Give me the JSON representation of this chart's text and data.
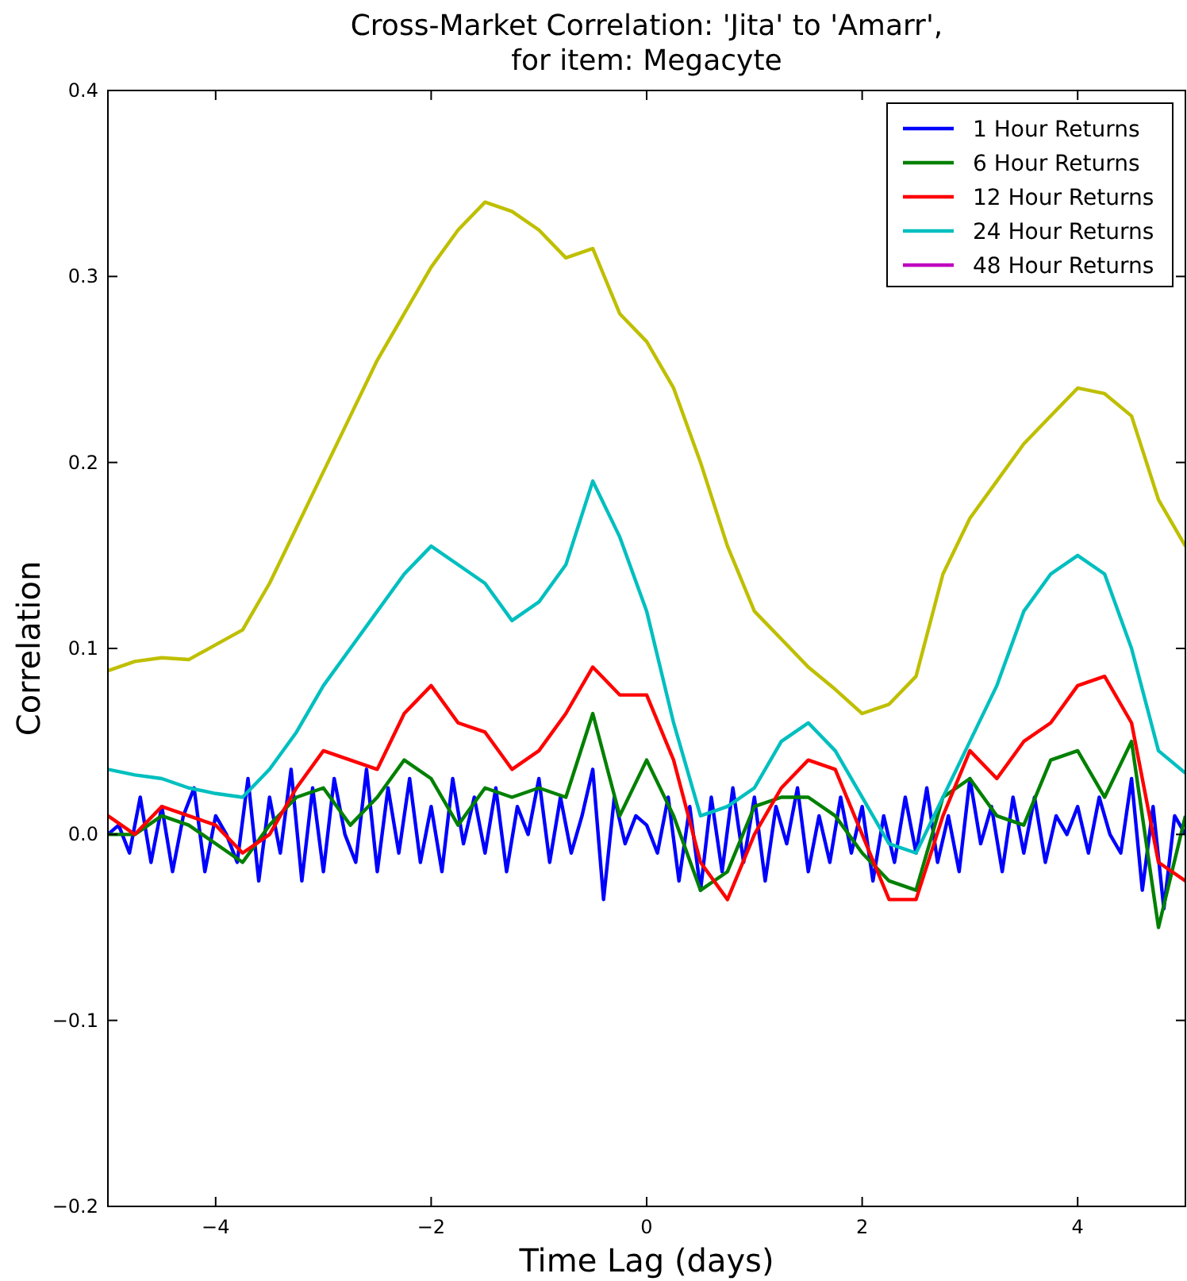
{
  "chart_data": {
    "type": "line",
    "title": "Cross-Market Correlation: 'Jita' to 'Amarr',\nfor item: Megacyte",
    "xlabel": "Time Lag (days)",
    "ylabel": "Correlation",
    "xlim": [
      -5,
      5
    ],
    "ylim": [
      -0.2,
      0.4
    ],
    "xticks": [
      {
        "value": -4,
        "label": "−4"
      },
      {
        "value": -2,
        "label": "−2"
      },
      {
        "value": 0,
        "label": "0"
      },
      {
        "value": 2,
        "label": "2"
      },
      {
        "value": 4,
        "label": "4"
      }
    ],
    "yticks": [
      {
        "value": -0.2,
        "label": "−0.2"
      },
      {
        "value": -0.1,
        "label": "−0.1"
      },
      {
        "value": 0,
        "label": "0.0"
      },
      {
        "value": 0.1,
        "label": "0.1"
      },
      {
        "value": 0.2,
        "label": "0.2"
      },
      {
        "value": 0.3,
        "label": "0.3"
      },
      {
        "value": 0.4,
        "label": "0.4"
      }
    ],
    "grid": false,
    "legend": "top right",
    "line_style": "solid",
    "marker": "none",
    "x": [
      -5,
      -4.75,
      -4.5,
      -4.25,
      -4,
      -3.75,
      -3.5,
      -3.25,
      -3,
      -2.75,
      -2.5,
      -2.25,
      -2,
      -1.75,
      -1.5,
      -1.25,
      -1,
      -0.75,
      -0.5,
      -0.25,
      0,
      0.25,
      0.5,
      0.75,
      1,
      1.25,
      1.5,
      1.75,
      2,
      2.25,
      2.5,
      2.75,
      3,
      3.25,
      3.5,
      3.75,
      4,
      4.25,
      4.5,
      4.75,
      5
    ],
    "series": [
      {
        "name": "1 Hour Returns",
        "color": "#0000ff",
        "x": [
          -5,
          -4.9,
          -4.8,
          -4.7,
          -4.6,
          -4.5,
          -4.4,
          -4.3,
          -4.2,
          -4.1,
          -4,
          -3.9,
          -3.8,
          -3.7,
          -3.6,
          -3.5,
          -3.4,
          -3.3,
          -3.2,
          -3.1,
          -3,
          -2.9,
          -2.8,
          -2.7,
          -2.6,
          -2.5,
          -2.4,
          -2.3,
          -2.2,
          -2.1,
          -2,
          -1.9,
          -1.8,
          -1.7,
          -1.6,
          -1.5,
          -1.4,
          -1.3,
          -1.2,
          -1.1,
          -1,
          -0.9,
          -0.8,
          -0.7,
          -0.6,
          -0.5,
          -0.4,
          -0.3,
          -0.2,
          -0.1,
          0,
          0.1,
          0.2,
          0.3,
          0.4,
          0.5,
          0.6,
          0.7,
          0.8,
          0.9,
          1,
          1.1,
          1.2,
          1.3,
          1.4,
          1.5,
          1.6,
          1.7,
          1.8,
          1.9,
          2,
          2.1,
          2.2,
          2.3,
          2.4,
          2.5,
          2.6,
          2.7,
          2.8,
          2.9,
          3,
          3.1,
          3.2,
          3.3,
          3.4,
          3.5,
          3.6,
          3.7,
          3.8,
          3.9,
          4,
          4.1,
          4.2,
          4.3,
          4.4,
          4.5,
          4.6,
          4.7,
          4.8,
          4.9,
          5
        ],
        "values": [
          0.0,
          0.005,
          -0.01,
          0.02,
          -0.015,
          0.015,
          -0.02,
          0.01,
          0.025,
          -0.02,
          0.01,
          0.0,
          -0.015,
          0.03,
          -0.025,
          0.02,
          -0.01,
          0.035,
          -0.025,
          0.025,
          -0.02,
          0.03,
          0.0,
          -0.015,
          0.035,
          -0.02,
          0.025,
          -0.01,
          0.03,
          -0.015,
          0.015,
          -0.02,
          0.03,
          -0.005,
          0.02,
          -0.01,
          0.025,
          -0.02,
          0.015,
          0.0,
          0.03,
          -0.015,
          0.02,
          -0.01,
          0.01,
          0.035,
          -0.035,
          0.02,
          -0.005,
          0.01,
          0.005,
          -0.01,
          0.02,
          -0.025,
          0.015,
          -0.03,
          0.02,
          -0.02,
          0.025,
          -0.015,
          0.02,
          -0.025,
          0.015,
          -0.005,
          0.025,
          -0.02,
          0.01,
          -0.015,
          0.02,
          -0.01,
          0.015,
          -0.025,
          0.01,
          -0.015,
          0.02,
          -0.01,
          0.025,
          -0.015,
          0.01,
          -0.02,
          0.03,
          -0.005,
          0.015,
          -0.02,
          0.02,
          -0.01,
          0.02,
          -0.015,
          0.01,
          0.0,
          0.015,
          -0.01,
          0.02,
          0.0,
          -0.01,
          0.03,
          -0.03,
          0.015,
          -0.04,
          0.01,
          0.0
        ]
      },
      {
        "name": "6 Hour Returns",
        "color": "#008000",
        "values": [
          0.0,
          0.0,
          0.01,
          0.005,
          -0.005,
          -0.015,
          0.005,
          0.02,
          0.025,
          0.005,
          0.02,
          0.04,
          0.03,
          0.005,
          0.025,
          0.02,
          0.025,
          0.02,
          0.065,
          0.01,
          0.04,
          0.01,
          -0.03,
          -0.02,
          0.015,
          0.02,
          0.02,
          0.01,
          -0.01,
          -0.025,
          -0.03,
          0.02,
          0.03,
          0.01,
          0.005,
          0.04,
          0.045,
          0.02,
          0.05,
          -0.05,
          0.01
        ]
      },
      {
        "name": "12 Hour Returns",
        "color": "#ff0000",
        "values": [
          0.01,
          0.0,
          0.015,
          0.01,
          0.005,
          -0.01,
          0.0,
          0.025,
          0.045,
          0.04,
          0.035,
          0.065,
          0.08,
          0.06,
          0.055,
          0.035,
          0.045,
          0.065,
          0.09,
          0.075,
          0.075,
          0.04,
          -0.015,
          -0.035,
          0.0,
          0.025,
          0.04,
          0.035,
          0.0,
          -0.035,
          -0.035,
          0.01,
          0.045,
          0.03,
          0.05,
          0.06,
          0.08,
          0.085,
          0.06,
          -0.015,
          -0.025
        ]
      },
      {
        "name": "24 Hour Returns",
        "color": "#00bfbf",
        "values": [
          0.035,
          0.032,
          0.03,
          0.025,
          0.022,
          0.02,
          0.035,
          0.055,
          0.08,
          0.1,
          0.12,
          0.14,
          0.155,
          0.145,
          0.135,
          0.115,
          0.125,
          0.145,
          0.19,
          0.16,
          0.12,
          0.06,
          0.01,
          0.015,
          0.025,
          0.05,
          0.06,
          0.045,
          0.02,
          -0.005,
          -0.01,
          0.02,
          0.05,
          0.08,
          0.12,
          0.14,
          0.15,
          0.14,
          0.1,
          0.045,
          0.033
        ]
      },
      {
        "name": "48 Hour Returns",
        "color": "#bf00bf",
        "values": [
          null,
          null,
          null,
          null,
          null,
          null,
          null,
          null,
          null,
          null,
          null,
          null,
          null,
          null,
          null,
          null,
          null,
          null,
          null,
          null,
          null,
          null,
          null,
          null,
          null,
          null,
          null,
          null,
          null,
          null,
          null,
          null,
          null,
          null,
          null,
          null,
          null,
          null,
          null,
          null,
          null
        ]
      },
      {
        "color": "#bfbf00",
        "values": [
          0.088,
          0.093,
          0.095,
          0.094,
          0.102,
          0.11,
          0.135,
          0.165,
          0.195,
          0.225,
          0.255,
          0.28,
          0.305,
          0.325,
          0.34,
          0.335,
          0.325,
          0.31,
          0.315,
          0.28,
          0.265,
          0.24,
          0.2,
          0.155,
          0.12,
          0.105,
          0.09,
          0.078,
          0.065,
          0.07,
          0.085,
          0.14,
          0.17,
          0.19,
          0.21,
          0.225,
          0.24,
          0.237,
          0.225,
          0.18,
          0.155
        ]
      }
    ]
  }
}
